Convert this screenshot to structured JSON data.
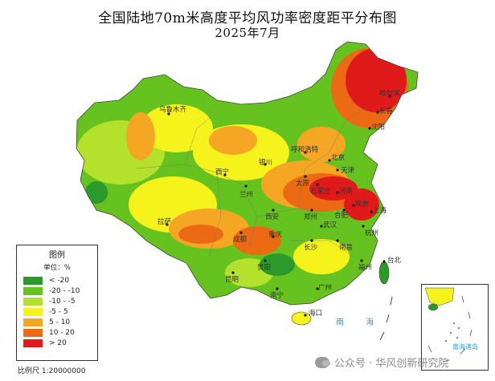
{
  "title": "全国陆地70m米高度平均风功率密度距平分布图",
  "subtitle": "2025年7月",
  "legend": {
    "title": "图例",
    "unit": "单位：%",
    "items": [
      {
        "label": "< -20",
        "color": "#2a9b2a"
      },
      {
        "label": "-20 - -10",
        "color": "#66c21f"
      },
      {
        "label": "-10 - -5",
        "color": "#b4e12c"
      },
      {
        "label": "-5 - 5",
        "color": "#f5f21c"
      },
      {
        "label": "5 - 10",
        "color": "#f5a623"
      },
      {
        "label": "10 - 20",
        "color": "#ec6a14"
      },
      {
        "label": "> 20",
        "color": "#e01a1a"
      }
    ]
  },
  "scale": "比例尺 1:20000000",
  "sea_label": "南  海",
  "inset_label": "南海诸岛",
  "watermark": "公众号 · 华风创新研究院",
  "cities": [
    {
      "name": "乌鲁木齐"
    },
    {
      "name": "拉萨"
    },
    {
      "name": "西宁"
    },
    {
      "name": "兰州"
    },
    {
      "name": "银川"
    },
    {
      "name": "呼和浩特"
    },
    {
      "name": "北京"
    },
    {
      "name": "天津"
    },
    {
      "name": "太原"
    },
    {
      "name": "石家庄"
    },
    {
      "name": "济南"
    },
    {
      "name": "郑州"
    },
    {
      "name": "西安"
    },
    {
      "name": "成都"
    },
    {
      "name": "重庆"
    },
    {
      "name": "武汉"
    },
    {
      "name": "合肥"
    },
    {
      "name": "南京"
    },
    {
      "name": "上海"
    },
    {
      "name": "杭州"
    },
    {
      "name": "长沙"
    },
    {
      "name": "南昌"
    },
    {
      "name": "福州"
    },
    {
      "name": "台北"
    },
    {
      "name": "贵阳"
    },
    {
      "name": "昆明"
    },
    {
      "name": "南宁"
    },
    {
      "name": "广州"
    },
    {
      "name": "海口"
    },
    {
      "name": "沈阳"
    },
    {
      "name": "长春"
    },
    {
      "name": "哈尔滨"
    }
  ]
}
